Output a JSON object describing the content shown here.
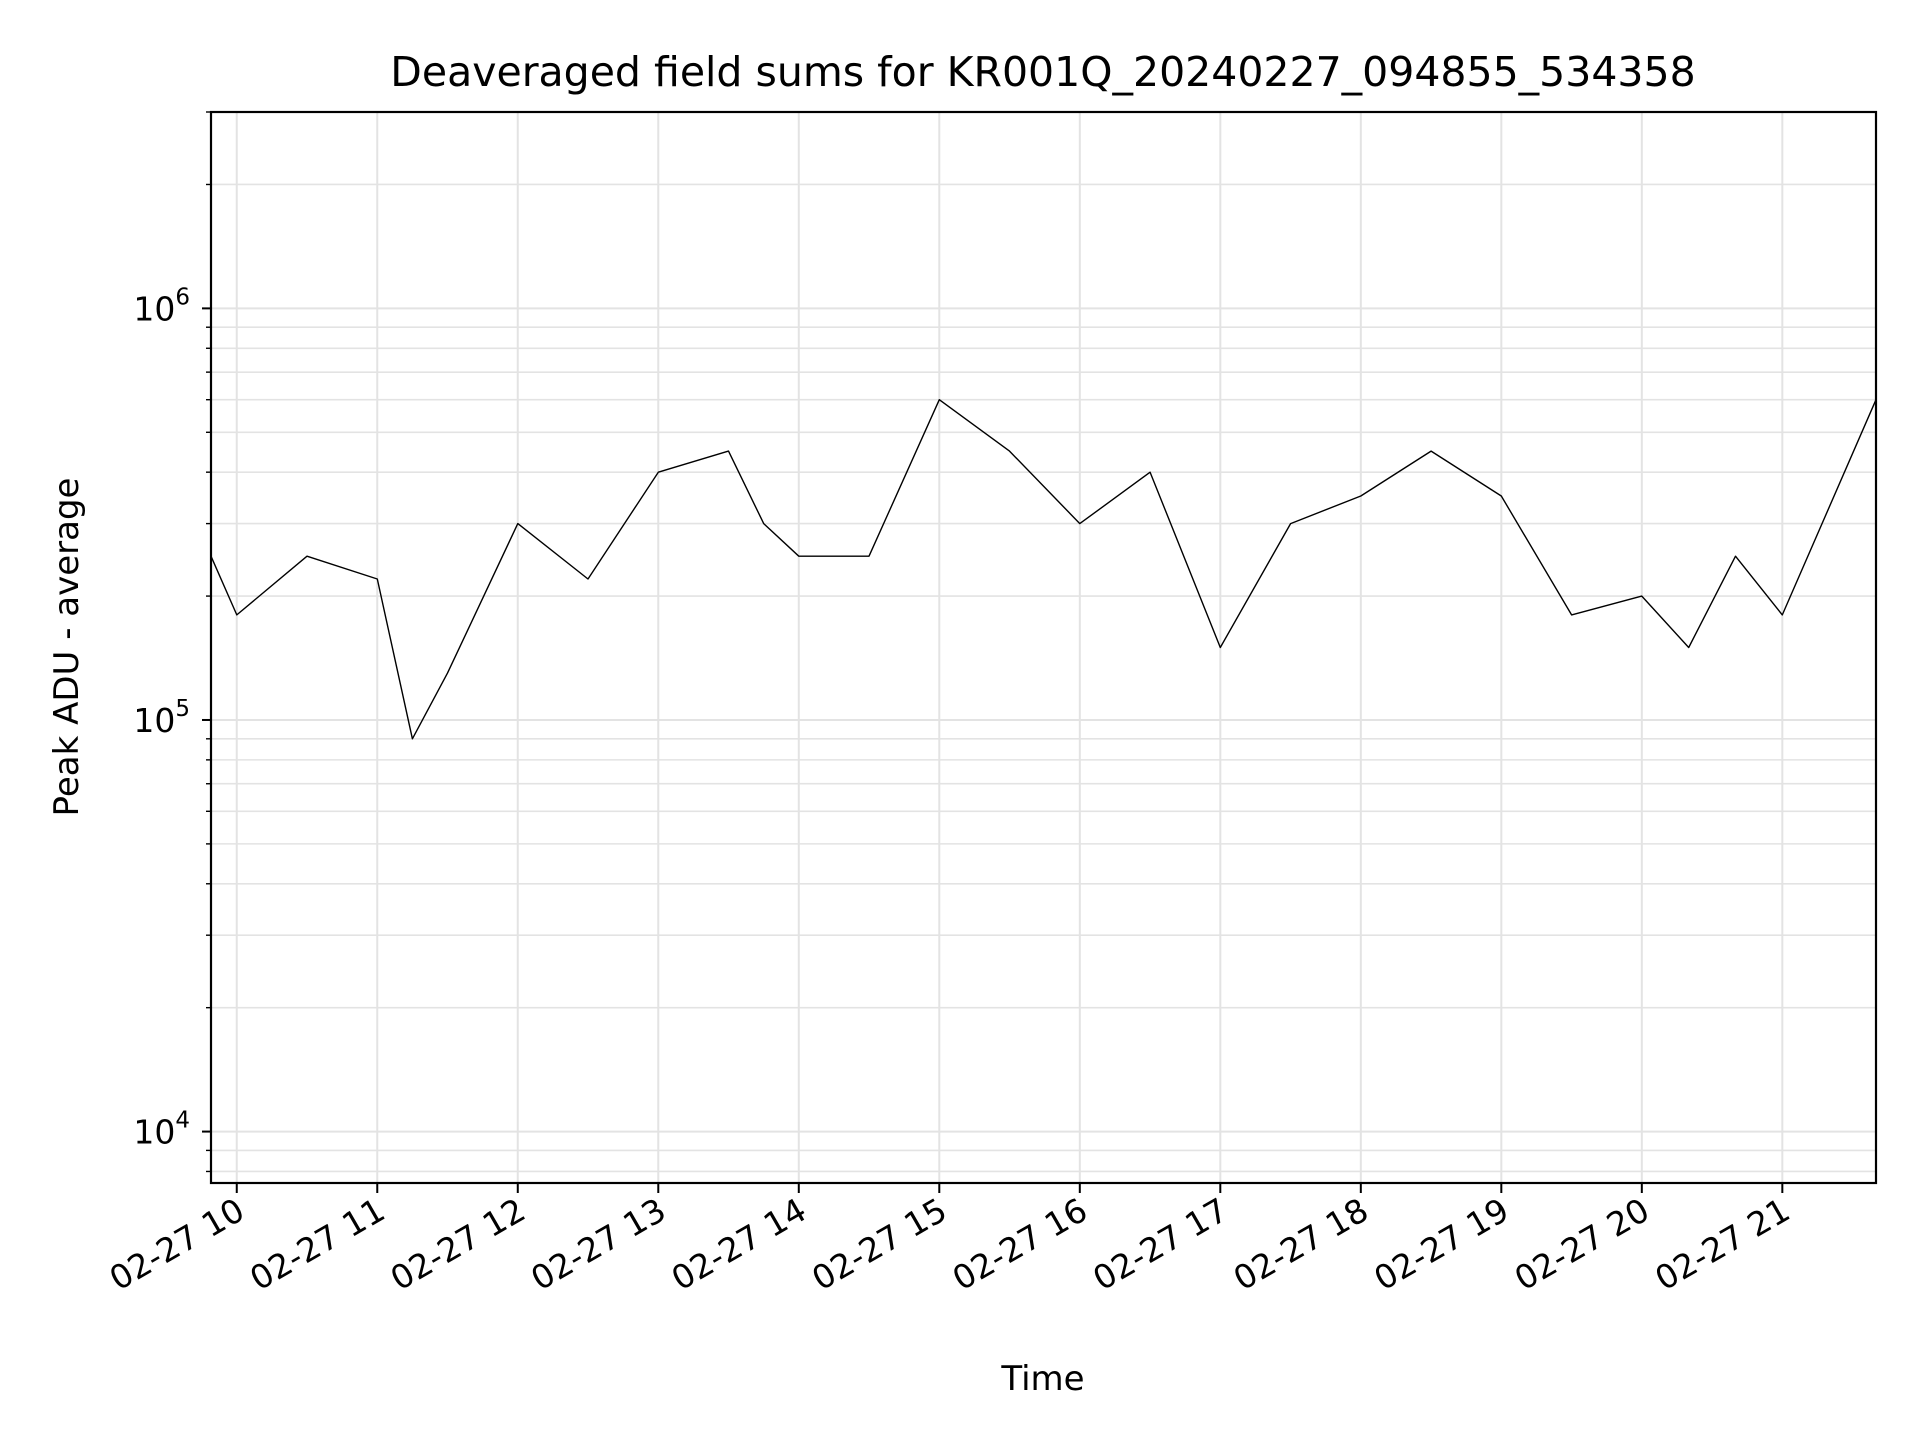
{
  "chart_data": {
    "type": "line",
    "title": "Deaveraged field sums for KR001Q_20240227_094855_534358",
    "xlabel": "Time",
    "ylabel": "Peak ADU - average",
    "yscale": "log",
    "xlim": [
      "2024-02-27 09:49",
      "2024-02-27 21:40"
    ],
    "ylim": [
      7500,
      3000000
    ],
    "x_ticks": [
      "02-27 10",
      "02-27 11",
      "02-27 12",
      "02-27 13",
      "02-27 14",
      "02-27 15",
      "02-27 16",
      "02-27 17",
      "02-27 18",
      "02-27 19",
      "02-27 20",
      "02-27 21"
    ],
    "y_ticks": [
      {
        "value": 10000,
        "base": "10",
        "exp": "4"
      },
      {
        "value": 100000,
        "base": "10",
        "exp": "5"
      },
      {
        "value": 1000000,
        "base": "10",
        "exp": "6"
      }
    ],
    "grid": true,
    "line_color": "#000000",
    "series": [
      {
        "x": [
          "2024-02-27 09:49",
          "2024-02-27 10:00",
          "2024-02-27 10:30",
          "2024-02-27 11:00",
          "2024-02-27 11:15",
          "2024-02-27 11:30",
          "2024-02-27 12:00",
          "2024-02-27 12:30",
          "2024-02-27 13:00",
          "2024-02-27 13:30",
          "2024-02-27 13:45",
          "2024-02-27 14:00",
          "2024-02-27 14:30",
          "2024-02-27 15:00",
          "2024-02-27 15:30",
          "2024-02-27 16:00",
          "2024-02-27 16:30",
          "2024-02-27 17:00",
          "2024-02-27 17:30",
          "2024-02-27 18:00",
          "2024-02-27 18:30",
          "2024-02-27 19:00",
          "2024-02-27 19:30",
          "2024-02-27 20:00",
          "2024-02-27 20:20",
          "2024-02-27 20:40",
          "2024-02-27 21:00",
          "2024-02-27 21:40"
        ],
        "y": [
          250000,
          180000,
          250000,
          220000,
          90000,
          130000,
          300000,
          220000,
          400000,
          450000,
          300000,
          250000,
          250000,
          600000,
          450000,
          300000,
          400000,
          150000,
          300000,
          350000,
          450000,
          350000,
          180000,
          200000,
          150000,
          250000,
          180000,
          600000
        ]
      }
    ]
  }
}
